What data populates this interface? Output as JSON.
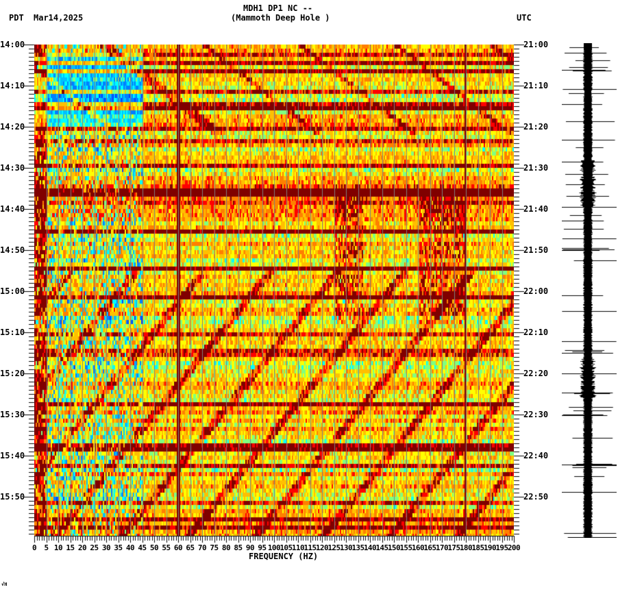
{
  "header": {
    "station": "MDH1 DP1 NC --",
    "location": "(Mammoth Deep Hole )",
    "left_tz": "PDT",
    "date": "Mar14,2025",
    "right_tz": "UTC"
  },
  "footer_mark": "√H",
  "colors": {
    "background": "#ffffff",
    "gridline": "#7f7f7f",
    "colormap": [
      "#0040ff",
      "#0080ff",
      "#00c0ff",
      "#00ffff",
      "#80ff80",
      "#ffff00",
      "#ffc000",
      "#ff8000",
      "#ff0000",
      "#800000"
    ],
    "trace": "#000000"
  },
  "chart_data": {
    "type": "heatmap",
    "title": "MDH1 DP1 NC -- (Mammoth Deep Hole ) spectrogram",
    "xlabel": "FREQUENCY (HZ)",
    "ylabel_left": "PDT",
    "ylabel_right": "UTC",
    "xlim": [
      0,
      200
    ],
    "x_ticks": [
      0,
      5,
      10,
      15,
      20,
      25,
      30,
      35,
      40,
      45,
      50,
      55,
      60,
      65,
      70,
      75,
      80,
      85,
      90,
      95,
      100,
      105,
      110,
      115,
      120,
      125,
      130,
      135,
      140,
      145,
      150,
      155,
      160,
      165,
      170,
      175,
      180,
      185,
      190,
      195,
      200
    ],
    "x_tick_labels": [
      "0",
      "5",
      "10",
      "15",
      "20",
      "25",
      "30",
      "35",
      "40",
      "45",
      "50",
      "55",
      "60",
      "65",
      "70",
      "75",
      "80",
      "85",
      "90",
      "95",
      "100",
      "105",
      "110",
      "115",
      "120",
      "125",
      "130",
      "135",
      "140",
      "145",
      "150",
      "155",
      "160",
      "165",
      "170",
      "175",
      "180",
      "185",
      "190",
      "195",
      "200"
    ],
    "y_range_minutes": [
      0,
      120
    ],
    "left_time_labels": [
      "14:00",
      "14:10",
      "14:20",
      "14:30",
      "14:40",
      "14:50",
      "15:00",
      "15:10",
      "15:20",
      "15:30",
      "15:40",
      "15:50"
    ],
    "right_time_labels": [
      "21:00",
      "21:10",
      "21:20",
      "21:30",
      "21:40",
      "21:50",
      "22:00",
      "22:10",
      "22:20",
      "22:30",
      "22:40",
      "22:50"
    ],
    "minor_tick_interval_min": 1,
    "grid": "vertical lines every 5 Hz",
    "persistent_lines_hz": [
      60,
      180
    ],
    "features": [
      {
        "desc": "low-power blue band 0-40 Hz",
        "time_min": [
          1,
          21
        ]
      },
      {
        "desc": "broadband high-power rows",
        "time_min": [
          20,
          22
        ]
      },
      {
        "desc": "strong broadband energy",
        "time_min": [
          35,
          42
        ]
      },
      {
        "desc": "high-power patches 125-135 Hz",
        "time_min": [
          35,
          67
        ]
      },
      {
        "desc": "high-power patches 160-180 Hz",
        "time_min": [
          35,
          67
        ]
      },
      {
        "desc": "gliding harmonic bands (diagonal)",
        "time_min": [
          60,
          120
        ]
      }
    ],
    "seismogram": "vertical velocity trace alongside, bursts near 14:35-14:40 and 15:20"
  }
}
